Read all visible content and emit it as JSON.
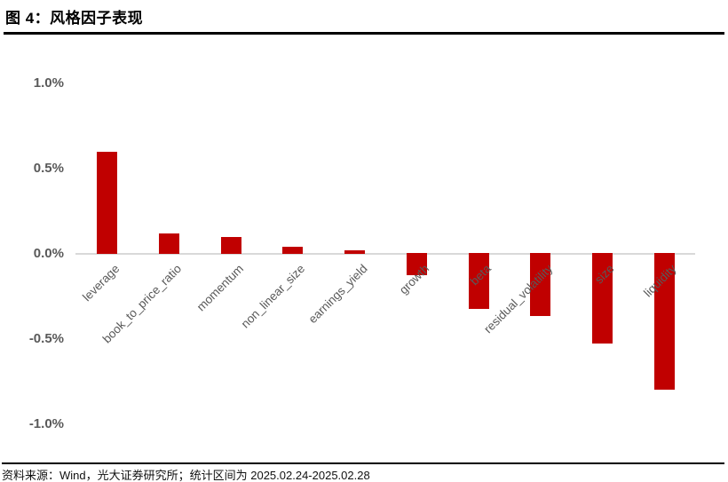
{
  "header": {
    "title": "图 4：风格因子表现"
  },
  "footer": {
    "text": "资料来源：Wind，光大证券研究所；统计区间为 2025.02.24-2025.02.28"
  },
  "chart_data": {
    "type": "bar",
    "title": "图 4：风格因子表现",
    "categories": [
      "leverage",
      "book_to_price_ratio",
      "momentum",
      "non_linear_size",
      "earnings_yield",
      "growth",
      "beta",
      "residual_volatility",
      "size",
      "liquidity"
    ],
    "values": [
      0.6,
      0.12,
      0.1,
      0.04,
      0.02,
      -0.13,
      -0.33,
      -0.37,
      -0.53,
      -0.8
    ],
    "unit": "%",
    "xlabel": "",
    "ylabel": "",
    "ylim": [
      -1.0,
      1.0
    ],
    "yticks": [
      {
        "value": 1.0,
        "label": "1.0%"
      },
      {
        "value": 0.5,
        "label": "0.5%"
      },
      {
        "value": 0.0,
        "label": "0.0%"
      },
      {
        "value": -0.5,
        "label": "-0.5%"
      },
      {
        "value": -1.0,
        "label": "-1.0%"
      }
    ],
    "grid": false,
    "legend": "none",
    "bar_color": "#c00000",
    "axis_line_color": "#d9d9d9",
    "tick_label_color": "#595959"
  }
}
